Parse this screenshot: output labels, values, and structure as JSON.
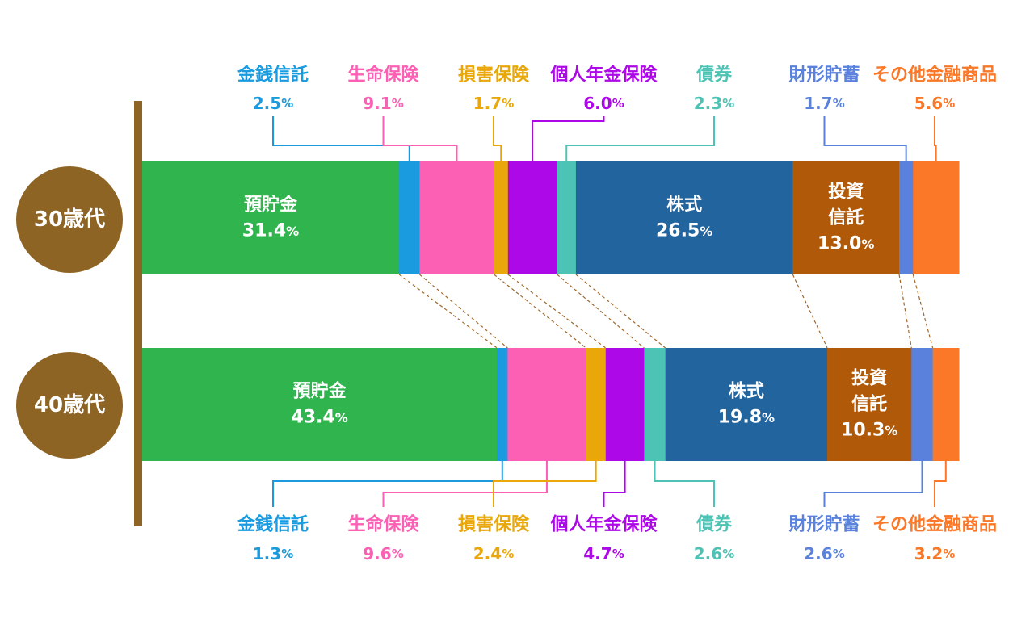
{
  "chart_data": {
    "type": "bar",
    "orientation": "horizontal",
    "stacked": true,
    "normalized": true,
    "unit": "%",
    "categories": [
      "30歳代",
      "40歳代"
    ],
    "series": [
      {
        "name": "預貯金",
        "values": [
          31.4,
          43.4
        ],
        "color": "#2fb44e",
        "bar_labels": [
          "預貯金",
          "預貯金"
        ]
      },
      {
        "name": "金銭信託",
        "values": [
          2.5,
          1.3
        ],
        "color": "#1a9be0"
      },
      {
        "name": "生命保険",
        "values": [
          9.1,
          9.6
        ],
        "color": "#fb60b4"
      },
      {
        "name": "損害保険",
        "values": [
          1.7,
          2.4
        ],
        "color": "#e9a70a"
      },
      {
        "name": "個人年金保険",
        "values": [
          6.0,
          4.7
        ],
        "color": "#ac08e8"
      },
      {
        "name": "債券",
        "values": [
          2.3,
          2.6
        ],
        "color": "#4dc3b5"
      },
      {
        "name": "株式",
        "values": [
          26.5,
          19.8
        ],
        "color": "#22649e",
        "bar_labels": [
          "株式",
          "株式"
        ]
      },
      {
        "name": "投資信託",
        "values": [
          13.0,
          10.3
        ],
        "color": "#b05a09",
        "bar_labels": [
          "投資\n信託",
          "投資\n信託"
        ]
      },
      {
        "name": "財形貯蓄",
        "values": [
          1.7,
          2.6
        ],
        "color": "#5a82dc"
      },
      {
        "name": "その他金融商品",
        "values": [
          5.6,
          3.2
        ],
        "color": "#fa7827"
      }
    ],
    "callouts": [
      "金銭信託",
      "生命保険",
      "損害保険",
      "個人年金保険",
      "債券",
      "財形貯蓄",
      "その他金融商品"
    ],
    "group_badge_color": "#8d6424",
    "connector_color": "#a0682c"
  }
}
